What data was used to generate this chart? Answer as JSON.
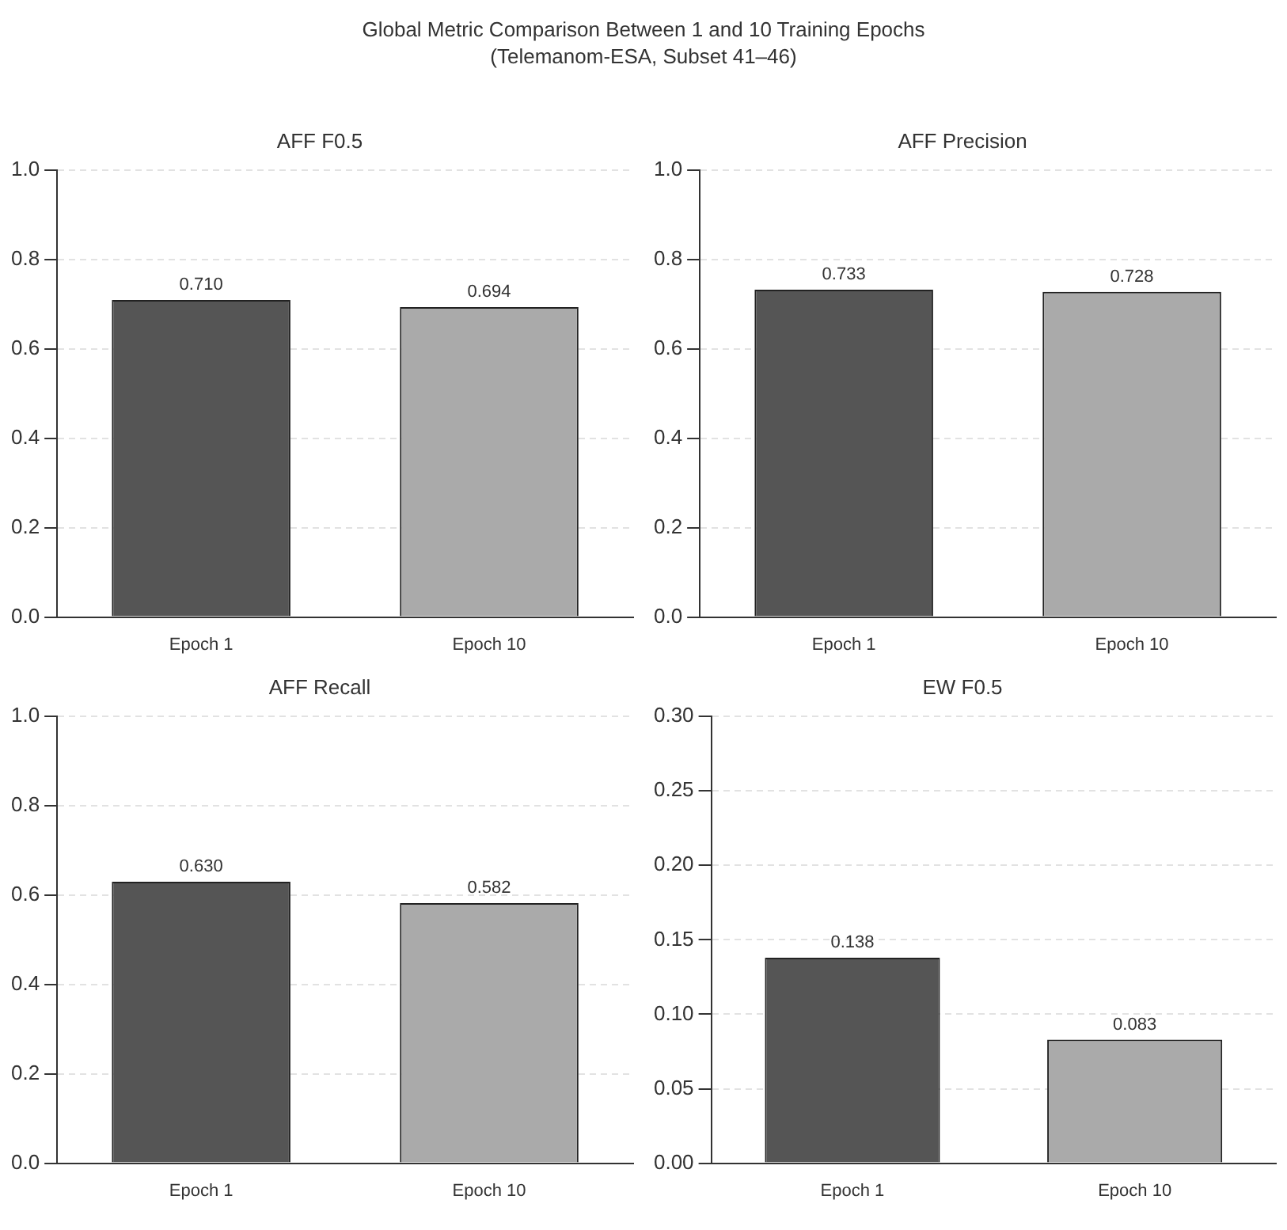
{
  "chart_data": [
    {
      "type": "other",
      "title": "Global Metric Comparison Between 1 and 10 Training Epochs",
      "subtitle": "(Telemanom-ESA, Subset 41–46)"
    },
    {
      "type": "bar",
      "title": "AFF F0.5",
      "categories": [
        "Epoch 1",
        "Epoch 10"
      ],
      "values": [
        0.71,
        0.694
      ],
      "colors": [
        "#555555",
        "#aaaaaa"
      ],
      "ylim": [
        0,
        1
      ],
      "yticks": [
        {
          "value": 0,
          "label": "0.0"
        },
        {
          "value": 0.2,
          "label": "0.2"
        },
        {
          "value": 0.4,
          "label": "0.4"
        },
        {
          "value": 0.6,
          "label": "0.6"
        },
        {
          "value": 0.8,
          "label": "0.8"
        },
        {
          "value": 1,
          "label": "1.0"
        }
      ],
      "grid": "y",
      "value_labels": [
        "0.710",
        "0.694"
      ]
    },
    {
      "type": "bar",
      "title": "AFF Precision",
      "categories": [
        "Epoch 1",
        "Epoch 10"
      ],
      "values": [
        0.733,
        0.728
      ],
      "colors": [
        "#555555",
        "#aaaaaa"
      ],
      "ylim": [
        0,
        1
      ],
      "yticks": [
        {
          "value": 0,
          "label": "0.0"
        },
        {
          "value": 0.2,
          "label": "0.2"
        },
        {
          "value": 0.4,
          "label": "0.4"
        },
        {
          "value": 0.6,
          "label": "0.6"
        },
        {
          "value": 0.8,
          "label": "0.8"
        },
        {
          "value": 1,
          "label": "1.0"
        }
      ],
      "grid": "y",
      "value_labels": [
        "0.733",
        "0.728"
      ]
    },
    {
      "type": "bar",
      "title": "AFF Recall",
      "categories": [
        "Epoch 1",
        "Epoch 10"
      ],
      "values": [
        0.63,
        0.582
      ],
      "colors": [
        "#555555",
        "#aaaaaa"
      ],
      "ylim": [
        0,
        1
      ],
      "yticks": [
        {
          "value": 0,
          "label": "0.0"
        },
        {
          "value": 0.2,
          "label": "0.2"
        },
        {
          "value": 0.4,
          "label": "0.4"
        },
        {
          "value": 0.6,
          "label": "0.6"
        },
        {
          "value": 0.8,
          "label": "0.8"
        },
        {
          "value": 1,
          "label": "1.0"
        }
      ],
      "grid": "y",
      "value_labels": [
        "0.630",
        "0.582"
      ]
    },
    {
      "type": "bar",
      "title": "EW F0.5",
      "categories": [
        "Epoch 1",
        "Epoch 10"
      ],
      "values": [
        0.138,
        0.083
      ],
      "colors": [
        "#555555",
        "#aaaaaa"
      ],
      "ylim": [
        0,
        0.3
      ],
      "yticks": [
        {
          "value": 0,
          "label": "0.00"
        },
        {
          "value": 0.05,
          "label": "0.05"
        },
        {
          "value": 0.1,
          "label": "0.10"
        },
        {
          "value": 0.15,
          "label": "0.15"
        },
        {
          "value": 0.2,
          "label": "0.20"
        },
        {
          "value": 0.25,
          "label": "0.25"
        },
        {
          "value": 0.3,
          "label": "0.30"
        }
      ],
      "grid": "y",
      "value_labels": [
        "0.138",
        "0.083"
      ]
    }
  ]
}
